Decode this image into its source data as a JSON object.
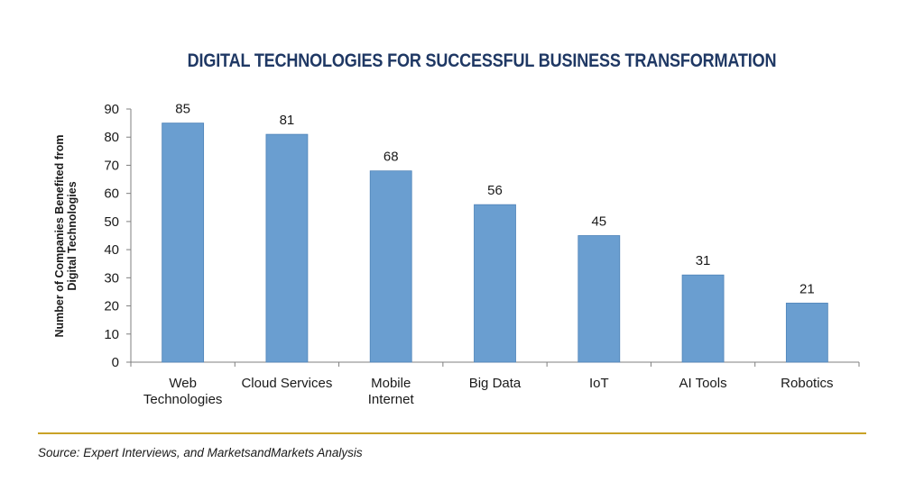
{
  "chart_data": {
    "type": "bar",
    "title": "DIGITAL TECHNOLOGIES FOR SUCCESSFUL BUSINESS TRANSFORMATION",
    "ylabel": [
      "Number of Companies Benefited from",
      "Digital Technologies"
    ],
    "xlabel": "",
    "categories": [
      [
        "Web",
        "Technologies"
      ],
      [
        "Cloud Services"
      ],
      [
        "Mobile",
        "Internet"
      ],
      [
        "Big Data"
      ],
      [
        "IoT"
      ],
      [
        "AI Tools"
      ],
      [
        "Robotics"
      ]
    ],
    "values": [
      85,
      81,
      68,
      56,
      45,
      31,
      21
    ],
    "ylim": [
      0,
      90
    ],
    "yticks": [
      0,
      10,
      20,
      30,
      40,
      50,
      60,
      70,
      80,
      90
    ],
    "grid": false,
    "legend": "none",
    "bar_color": "#6a9ed0",
    "bar_edge_color": "#4f83b8"
  },
  "source": "Source: Expert Interviews, and MarketsandMarkets Analysis",
  "colors": {
    "title": "#1f3864",
    "separator": "#c9a227"
  }
}
